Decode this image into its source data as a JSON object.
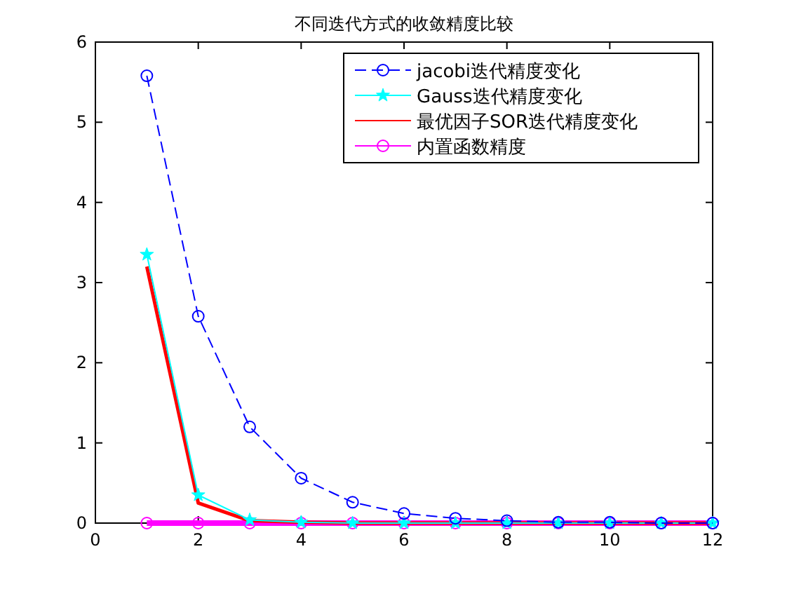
{
  "chart_data": {
    "type": "line",
    "title": "不同迭代方式的收敛精度比较",
    "x": [
      1,
      2,
      3,
      4,
      5,
      6,
      7,
      8,
      9,
      10,
      11,
      12
    ],
    "series": [
      {
        "name": "jacobi迭代精度变化",
        "color": "#0000ff",
        "marker": "circle",
        "line_style": "dashed",
        "values": [
          5.58,
          2.58,
          1.2,
          0.56,
          0.26,
          0.12,
          0.06,
          0.03,
          0.01,
          0.01,
          0,
          0
        ]
      },
      {
        "name": "Gauss迭代精度变化",
        "color": "#00ffff",
        "marker": "star",
        "line_style": "solid",
        "values": [
          3.35,
          0.35,
          0.04,
          0.01,
          0,
          0,
          0,
          0,
          0,
          0,
          0,
          0
        ]
      },
      {
        "name": "最优因子SOR迭代精度变化",
        "color": "#ff0000",
        "marker": "none",
        "line_style": "solid",
        "values": [
          3.2,
          0.25,
          0.03,
          0.01,
          0,
          0,
          0,
          0,
          0,
          0,
          0,
          0
        ]
      },
      {
        "name": "内置函数精度",
        "color": "#ff00ff",
        "marker": "circle",
        "line_style": "solid",
        "values": [
          0,
          0,
          0,
          0,
          0,
          0,
          0,
          0,
          0,
          0,
          0,
          0
        ]
      }
    ],
    "xlim": [
      0,
      12
    ],
    "xticks": [
      0,
      2,
      4,
      6,
      8,
      10,
      12
    ],
    "ylim": [
      0,
      6
    ],
    "yticks": [
      0,
      1,
      2,
      3,
      4,
      5,
      6
    ],
    "grid": false,
    "legend": "top right"
  }
}
